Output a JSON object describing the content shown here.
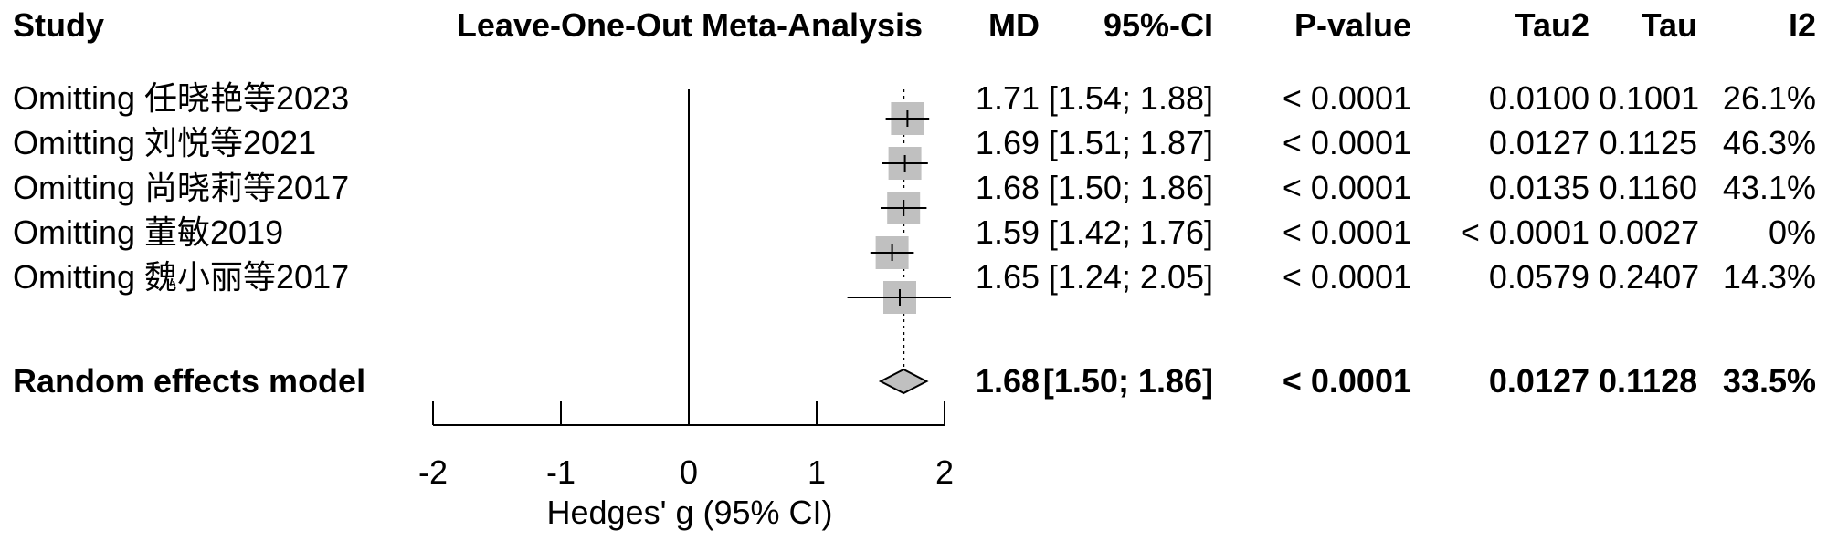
{
  "headers": {
    "study": "Study",
    "plot": "Leave-One-Out Meta-Analysis",
    "md": "MD",
    "ci": "95%-CI",
    "pvalue": "P-value",
    "tau2": "Tau2",
    "tau": "Tau",
    "i2": "I2"
  },
  "rows": [
    {
      "study": "Omitting 任晓艳等2023",
      "md": "1.71",
      "ci": "[1.54; 1.88]",
      "pvalue": "< 0.0001",
      "tau2": "0.0100",
      "tau": "0.1001",
      "i2": "26.1%"
    },
    {
      "study": "Omitting 刘悦等2021",
      "md": "1.69",
      "ci": "[1.51; 1.87]",
      "pvalue": "< 0.0001",
      "tau2": "0.0127",
      "tau": "0.1125",
      "i2": "46.3%"
    },
    {
      "study": "Omitting 尚晓莉等2017",
      "md": "1.68",
      "ci": "[1.50; 1.86]",
      "pvalue": "< 0.0001",
      "tau2": "0.0135",
      "tau": "0.1160",
      "i2": "43.1%"
    },
    {
      "study": "Omitting 董敏2019",
      "md": "1.59",
      "ci": "[1.42; 1.76]",
      "pvalue": "< 0.0001",
      "tau2": "< 0.0001",
      "tau": "0.0027",
      "i2": "0%"
    },
    {
      "study": "Omitting 魏小丽等2017",
      "md": "1.65",
      "ci": "[1.24; 2.05]",
      "pvalue": "< 0.0001",
      "tau2": "0.0579",
      "tau": "0.2407",
      "i2": "14.3%"
    }
  ],
  "summary": {
    "study": "Random effects model",
    "md": "1.68",
    "ci": "[1.50; 1.86]",
    "pvalue": "< 0.0001",
    "tau2": "0.0127",
    "tau": "0.1128",
    "i2": "33.5%"
  },
  "axis": {
    "label": "Hedges' g (95% CI)",
    "ticks": [
      "-2",
      "-1",
      "0",
      "1",
      "2"
    ]
  },
  "colors": {
    "square": "#c0c0c0",
    "line": "#000000",
    "diamond": "#c0c0c0"
  },
  "chart_data": {
    "type": "forest",
    "title": "Leave-One-Out Meta-Analysis",
    "xlabel": "Hedges' g (95% CI)",
    "xlim": [
      -2,
      2
    ],
    "xticks": [
      -2,
      -1,
      0,
      1,
      2
    ],
    "reference_line": 0,
    "summary_line": 1.68,
    "studies": [
      {
        "label": "Omitting 任晓艳等2023",
        "estimate": 1.71,
        "lower": 1.54,
        "upper": 1.88
      },
      {
        "label": "Omitting 刘悦等2021",
        "estimate": 1.69,
        "lower": 1.51,
        "upper": 1.87
      },
      {
        "label": "Omitting 尚晓莉等2017",
        "estimate": 1.68,
        "lower": 1.5,
        "upper": 1.86
      },
      {
        "label": "Omitting 董敏2019",
        "estimate": 1.59,
        "lower": 1.42,
        "upper": 1.76
      },
      {
        "label": "Omitting 魏小丽等2017",
        "estimate": 1.65,
        "lower": 1.24,
        "upper": 2.05
      }
    ],
    "summary": {
      "label": "Random effects model",
      "estimate": 1.68,
      "lower": 1.5,
      "upper": 1.86
    }
  }
}
